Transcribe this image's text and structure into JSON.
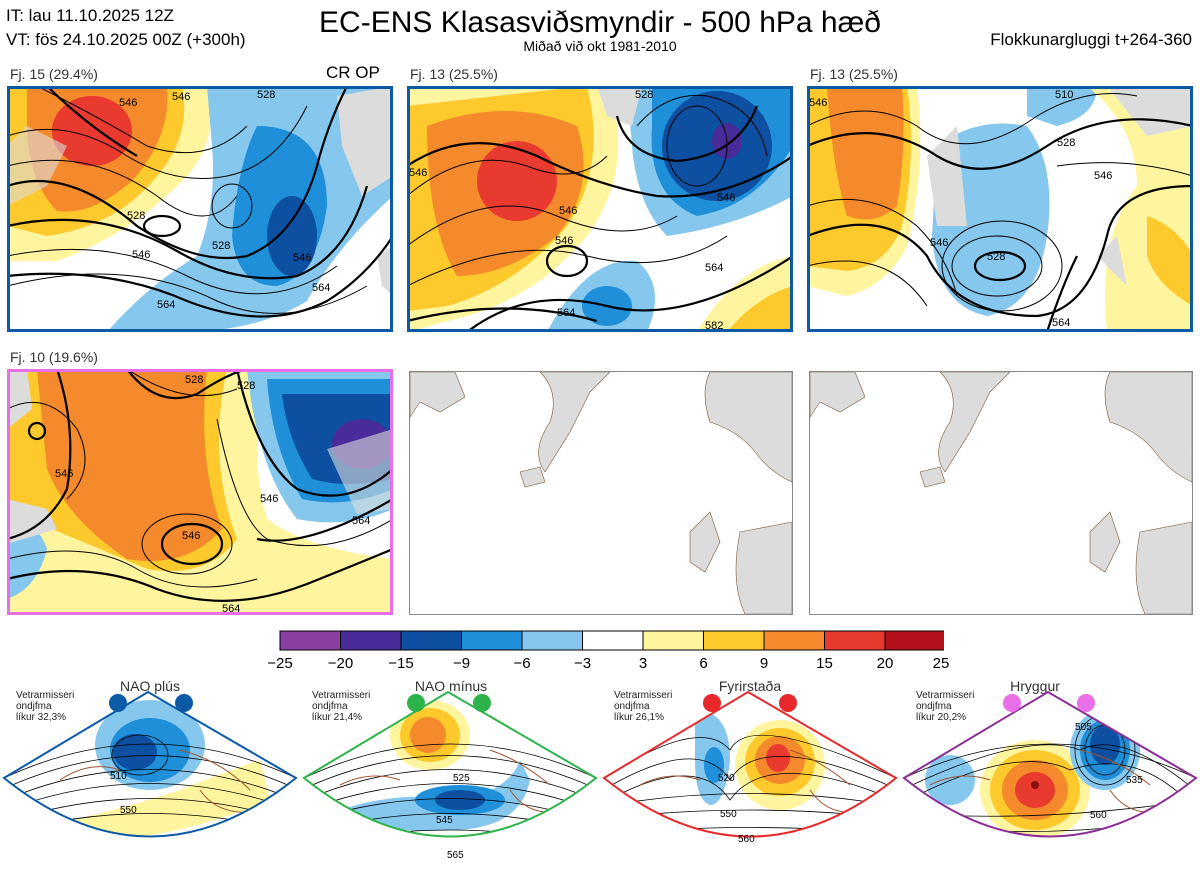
{
  "header": {
    "it_line": "IT: lau 11.10.2025 12Z",
    "vt_line": "VT: fös 24.10.2025 00Z  (+300h)",
    "title": "EC-ENS Klasasviðsmyndir - 500 hPa hæð",
    "subtitle": "Miðað við okt 1981-2010",
    "window": "Flokkunargluggi t+264-360"
  },
  "clusters": [
    {
      "label": "Fj. 15 (29.4%)",
      "tag": "CR OP",
      "regime": "NAO plús",
      "frame_color": "#0c5aa6",
      "contours": [
        "546",
        "546",
        "528",
        "546",
        "528",
        "546",
        "564",
        "564",
        "528"
      ]
    },
    {
      "label": "Fj. 13 (25.5%)",
      "tag": "",
      "regime": "NAO plús",
      "frame_color": "#0c5aa6",
      "contours": [
        "546",
        "546",
        "546",
        "546",
        "564",
        "564",
        "582",
        "528"
      ]
    },
    {
      "label": "Fj. 13 (25.5%)",
      "tag": "",
      "regime": "NAO plús",
      "frame_color": "#0c5aa6",
      "contours": [
        "546",
        "528",
        "546",
        "528",
        "546",
        "564",
        "510"
      ]
    },
    {
      "label": "Fj. 10 (19.6%)",
      "tag": "",
      "regime": "Hryggur",
      "frame_color": "#e86fe8",
      "contours": [
        "546",
        "528",
        "528",
        "546",
        "546",
        "564",
        "564"
      ]
    }
  ],
  "colorbar": {
    "ticks": [
      "−25",
      "−20",
      "−15",
      "−9",
      "−6",
      "−3",
      "3",
      "6",
      "9",
      "15",
      "20",
      "25"
    ],
    "colors": [
      "#8b3fa3",
      "#4a2b9a",
      "#0d4fa0",
      "#1e8fd8",
      "#86c7ee",
      "#ffffff",
      "#fff59e",
      "#fdc92c",
      "#f48a2c",
      "#e83a2f",
      "#b3121b"
    ]
  },
  "regimes": [
    {
      "name": "NAO plús",
      "note": [
        "Vetrarmisseri",
        "ondjfma",
        "líkur 32,3%"
      ],
      "dot_color": "#0c5aa6",
      "frame_color": "#0c5aa6",
      "contours": [
        "510",
        "550"
      ]
    },
    {
      "name": "NAO mínus",
      "note": [
        "Vetrarmisseri",
        "ondjfma",
        "líkur 21,4%"
      ],
      "dot_color": "#2db34a",
      "frame_color": "#2db34a",
      "contours": [
        "525",
        "545",
        "565"
      ]
    },
    {
      "name": "Fyrirstaða",
      "note": [
        "Vetrarmisseri",
        "ondjfma",
        "líkur 26,1%"
      ],
      "dot_color": "#e8282b",
      "frame_color": "#e8282b",
      "contours": [
        "520",
        "550",
        "560"
      ]
    },
    {
      "name": "Hryggur",
      "note": [
        "Vetrarmisseri",
        "ondjfma",
        "líkur 20,2%"
      ],
      "dot_color": "#e86fe8",
      "frame_color": "#8b2d96",
      "contours": [
        "505",
        "535",
        "560"
      ]
    }
  ]
}
